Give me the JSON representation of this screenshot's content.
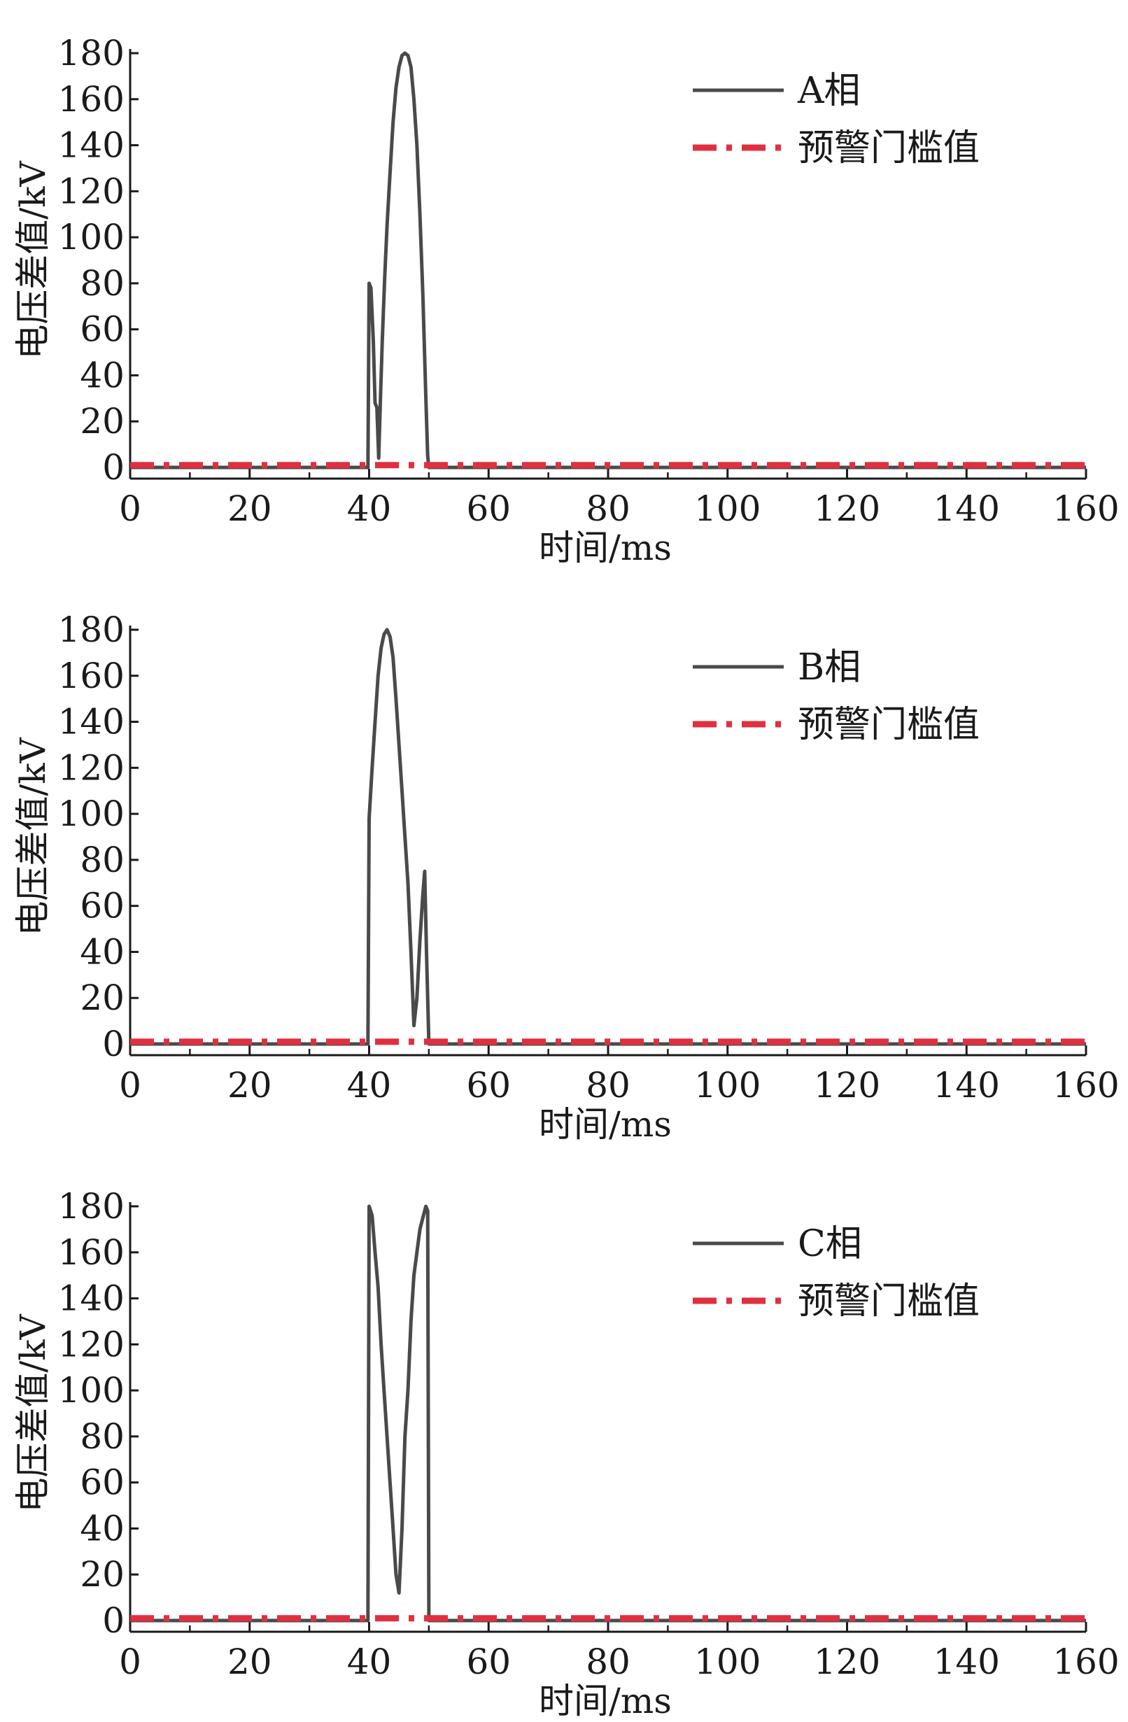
{
  "chart_data": [
    {
      "type": "line",
      "xlabel": "时间/ms",
      "ylabel": "电压差值/kV",
      "xlim": [
        0,
        160
      ],
      "ylim": [
        0,
        180
      ],
      "xticks": [
        0,
        20,
        40,
        60,
        80,
        100,
        120,
        140,
        160
      ],
      "yticks": [
        0,
        20,
        40,
        60,
        80,
        100,
        120,
        140,
        160,
        180
      ],
      "legend_position": "top-right",
      "series": [
        {
          "name": "A相",
          "color": "#4a4a4a",
          "style": "solid",
          "x": [
            0,
            39.8,
            40,
            40.3,
            40.7,
            41,
            41.3,
            41.6,
            41.9,
            42.2,
            42.6,
            43,
            43.5,
            44,
            44.5,
            45,
            45.5,
            46,
            46.5,
            47,
            47.5,
            48,
            48.5,
            49,
            49.5,
            49.8,
            50,
            50.3,
            160
          ],
          "y": [
            0,
            0,
            80,
            78,
            55,
            28,
            26,
            4,
            30,
            55,
            82,
            105,
            128,
            150,
            165,
            174,
            179,
            180,
            179,
            174,
            160,
            140,
            110,
            75,
            30,
            5,
            0,
            0,
            0
          ]
        },
        {
          "name": "预警门槛值",
          "color": "#e03040",
          "style": "dashdot",
          "x": [
            0,
            160
          ],
          "y": [
            1,
            1
          ]
        }
      ]
    },
    {
      "type": "line",
      "xlabel": "时间/ms",
      "ylabel": "电压差值/kV",
      "xlim": [
        0,
        160
      ],
      "ylim": [
        0,
        180
      ],
      "xticks": [
        0,
        20,
        40,
        60,
        80,
        100,
        120,
        140,
        160
      ],
      "yticks": [
        0,
        20,
        40,
        60,
        80,
        100,
        120,
        140,
        160,
        180
      ],
      "legend_position": "top-right",
      "series": [
        {
          "name": "B相",
          "color": "#4a4a4a",
          "style": "solid",
          "x": [
            0,
            39.8,
            40,
            40.5,
            41,
            41.5,
            42,
            42.5,
            43,
            43.5,
            44,
            44.5,
            45,
            45.5,
            46,
            46.5,
            47,
            47.5,
            48,
            48.5,
            49,
            49.3,
            49.6,
            50,
            50.3,
            160
          ],
          "y": [
            0,
            0,
            98,
            120,
            140,
            160,
            172,
            178,
            180,
            177,
            168,
            150,
            130,
            110,
            90,
            70,
            40,
            8,
            20,
            45,
            65,
            75,
            40,
            0,
            0,
            0
          ]
        },
        {
          "name": "预警门槛值",
          "color": "#e03040",
          "style": "dashdot",
          "x": [
            0,
            160
          ],
          "y": [
            1,
            1
          ]
        }
      ]
    },
    {
      "type": "line",
      "xlabel": "时间/ms",
      "ylabel": "电压差值/kV",
      "xlim": [
        0,
        160
      ],
      "ylim": [
        0,
        180
      ],
      "xticks": [
        0,
        20,
        40,
        60,
        80,
        100,
        120,
        140,
        160
      ],
      "yticks": [
        0,
        20,
        40,
        60,
        80,
        100,
        120,
        140,
        160,
        180
      ],
      "legend_position": "top-right",
      "series": [
        {
          "name": "C相",
          "color": "#4a4a4a",
          "style": "solid",
          "x": [
            0,
            39.8,
            40,
            40.5,
            41,
            41.5,
            42,
            42.5,
            43,
            43.5,
            44,
            44.5,
            45,
            45.5,
            46,
            46.5,
            47,
            47.5,
            48,
            48.5,
            49,
            49.5,
            49.8,
            50,
            50.3,
            160
          ],
          "y": [
            0,
            0,
            180,
            176,
            160,
            145,
            120,
            100,
            80,
            60,
            40,
            20,
            12,
            40,
            80,
            100,
            130,
            150,
            160,
            170,
            175,
            180,
            178,
            0,
            0,
            0
          ]
        },
        {
          "name": "预警门槛值",
          "color": "#e03040",
          "style": "dashdot",
          "x": [
            0,
            160
          ],
          "y": [
            1,
            1
          ]
        }
      ]
    }
  ]
}
